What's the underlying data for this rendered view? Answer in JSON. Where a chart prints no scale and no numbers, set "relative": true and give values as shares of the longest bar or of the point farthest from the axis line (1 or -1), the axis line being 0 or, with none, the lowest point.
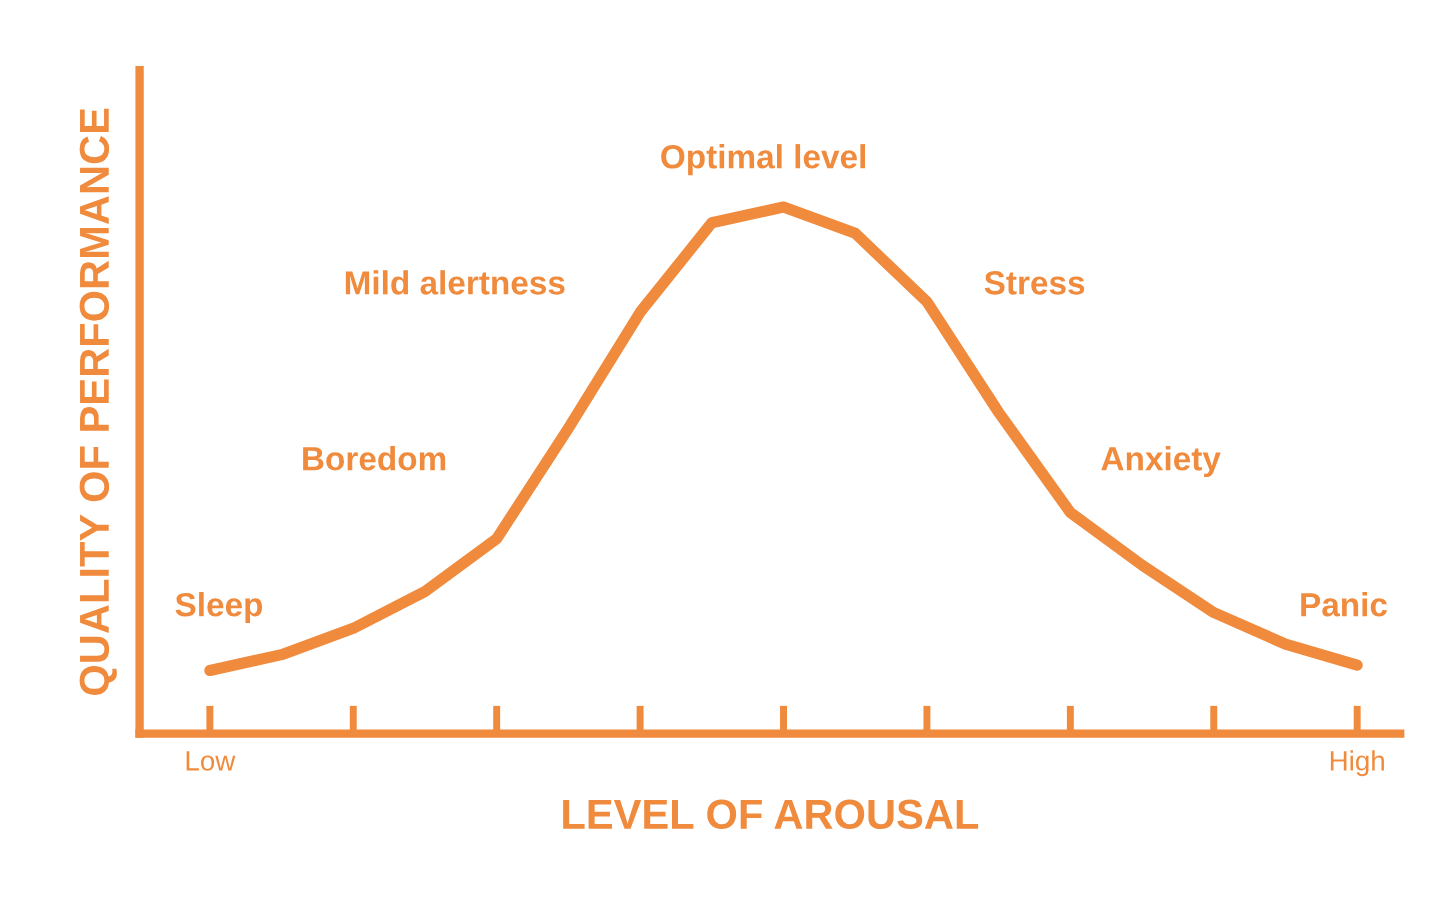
{
  "chart_data": {
    "type": "line",
    "relative": true,
    "xlabel": "LEVEL OF AROUSAL",
    "ylabel": "QUALITY OF PERFORMANCE",
    "categories": [
      "Low",
      null,
      null,
      null,
      null,
      null,
      null,
      null,
      null,
      null,
      null,
      null,
      null,
      null,
      null,
      null,
      "High"
    ],
    "series": [
      {
        "color": "#f08a3c",
        "values": [
          0.12,
          0.15,
          0.2,
          0.27,
          0.37,
          0.58,
          0.8,
          0.97,
          1.0,
          0.95,
          0.82,
          0.61,
          0.42,
          0.32,
          0.23,
          0.17,
          0.13
        ]
      }
    ],
    "tick_labels": "x",
    "marker": "none",
    "line_style": "solid",
    "annotations": [
      "Sleep",
      "Boredom",
      "Mild alertness",
      "Optimal level",
      "Stress",
      "Anxiety",
      "Panic"
    ]
  }
}
